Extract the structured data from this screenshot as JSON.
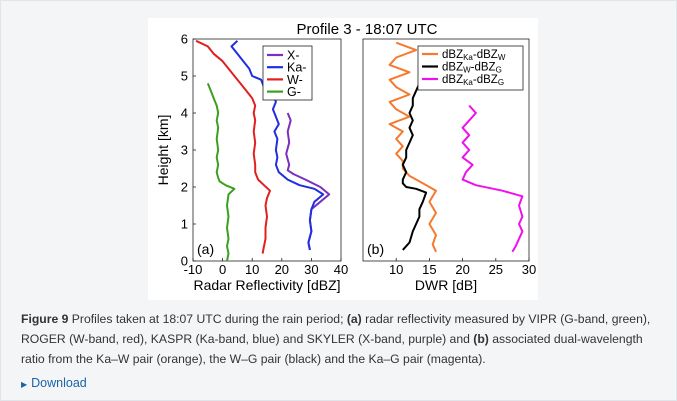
{
  "figure": {
    "title": "Profile 3 - 18:07 UTC",
    "caption": {
      "label": "Figure 9",
      "part1": " Profiles taken at 18:07 UTC during the rain period; ",
      "a_label": "(a)",
      "part2": " radar reflectivity measured by VIPR (G-band, green), ROGER (W-band, red), KASPR (Ka-band, blue) and SKYLER (X-band, purple) and ",
      "b_label": "(b)",
      "part3": " associated dual-wavelength ratio from the Ka–W pair (orange), the W–G pair (black) and the Ka–G pair (magenta)."
    },
    "download_label": "Download"
  },
  "chart_data": [
    {
      "type": "line",
      "panel_label": "(a)",
      "xlabel": "Radar Reflectivity [dBZ]",
      "ylabel": "Height [km]",
      "xlim": [
        -10,
        40
      ],
      "ylim": [
        0,
        6
      ],
      "xticks": [
        "-10",
        "0",
        "10",
        "20",
        "30",
        "40"
      ],
      "yticks": [
        "0",
        "1",
        "2",
        "3",
        "4",
        "5",
        "6"
      ],
      "grid": false,
      "legend_position": "top-right",
      "series": [
        {
          "name": "X-",
          "color": "#7b2fbe",
          "x": [
            22,
            23,
            22,
            22.5,
            21.5,
            22.5,
            22,
            24,
            28,
            33,
            36,
            33,
            30,
            29.5,
            30,
            29,
            29.5
          ],
          "y": [
            4.0,
            3.8,
            3.5,
            3.2,
            2.9,
            2.6,
            2.45,
            2.35,
            2.2,
            2.0,
            1.8,
            1.6,
            1.4,
            1.1,
            0.8,
            0.5,
            0.3
          ]
        },
        {
          "name": "Ka-",
          "color": "#1f2fe0",
          "x": [
            5,
            3,
            5,
            7,
            9,
            10,
            13,
            14,
            17,
            18,
            17,
            18,
            19,
            17.5,
            18.5,
            18,
            18.5,
            18,
            19,
            22,
            26,
            31,
            34,
            31,
            30,
            29.5,
            30,
            29,
            29.5
          ],
          "y": [
            5.95,
            5.8,
            5.6,
            5.4,
            5.2,
            5.0,
            4.9,
            4.7,
            4.5,
            4.3,
            4.1,
            3.9,
            3.7,
            3.5,
            3.3,
            3.0,
            2.8,
            2.6,
            2.4,
            2.2,
            2.05,
            1.95,
            1.8,
            1.6,
            1.4,
            1.1,
            0.8,
            0.5,
            0.3
          ]
        },
        {
          "name": "W-",
          "color": "#e02020",
          "x": [
            -9,
            -5,
            -3,
            0,
            2,
            4,
            6,
            8,
            10,
            11,
            10.5,
            11,
            10.5,
            11,
            10.5,
            11,
            11,
            12,
            14,
            16,
            15,
            14.5,
            15,
            14.5,
            14.5,
            14,
            13.5
          ],
          "y": [
            5.95,
            5.8,
            5.6,
            5.4,
            5.2,
            5.0,
            4.8,
            4.6,
            4.4,
            4.2,
            4.0,
            3.8,
            3.5,
            3.2,
            2.9,
            2.6,
            2.4,
            2.2,
            2.05,
            1.9,
            1.7,
            1.5,
            1.2,
            0.9,
            0.6,
            0.4,
            0.2
          ]
        },
        {
          "name": "G-",
          "color": "#3ca01e",
          "x": [
            -5,
            -4,
            -3,
            -2,
            -1.5,
            -2,
            -1.5,
            -2,
            -1.5,
            -2,
            -1.5,
            -2,
            -1.5,
            -1,
            1,
            4,
            2,
            1.5,
            2,
            1.5,
            2,
            1.5,
            2,
            1.5
          ],
          "y": [
            4.8,
            4.6,
            4.4,
            4.2,
            4.0,
            3.8,
            3.6,
            3.3,
            3.0,
            2.8,
            2.6,
            2.4,
            2.25,
            2.15,
            2.05,
            1.95,
            1.8,
            1.5,
            1.2,
            0.9,
            0.6,
            0.4,
            0.2,
            0.0
          ]
        }
      ]
    },
    {
      "type": "line",
      "panel_label": "(b)",
      "xlabel": "DWR [dB]",
      "ylabel": "",
      "xlim": [
        5,
        30
      ],
      "ylim": [
        0,
        6
      ],
      "xticks": [
        "10",
        "15",
        "20",
        "25",
        "30"
      ],
      "yticks": [],
      "grid": false,
      "legend_position": "top-right",
      "series": [
        {
          "name": "dBZ<sub>Ka</sub>-dBZ<sub>W</sub>",
          "label_main": "dBZ",
          "sub1": "Ka",
          "mid": "-dBZ",
          "sub2": "W",
          "color": "#f57a2e",
          "x": [
            10,
            13,
            10,
            9,
            12,
            9,
            10,
            12,
            9,
            10,
            12,
            9,
            11,
            10,
            11,
            10,
            11,
            11,
            12,
            14,
            16,
            15,
            16,
            15,
            16,
            15.5,
            16
          ],
          "y": [
            5.9,
            5.7,
            5.5,
            5.3,
            5.1,
            4.9,
            4.7,
            4.5,
            4.3,
            4.1,
            3.9,
            3.7,
            3.5,
            3.3,
            3.1,
            2.9,
            2.7,
            2.5,
            2.3,
            2.1,
            1.9,
            1.6,
            1.3,
            1.0,
            0.7,
            0.45,
            0.25
          ]
        },
        {
          "name": "dBZ<sub>W</sub>-dBZ<sub>G</sub>",
          "label_main": "dBZ",
          "sub1": "W",
          "mid": "-dBZ",
          "sub2": "G",
          "color": "#000000",
          "x": [
            14,
            13.5,
            13,
            12.5,
            12.5,
            12,
            12.5,
            12,
            12.5,
            12,
            11.5,
            11.5,
            11,
            11.5,
            11,
            11,
            11.5,
            13,
            14.5,
            14,
            13.5,
            13.5,
            13,
            12.5,
            12,
            11
          ],
          "y": [
            5.0,
            4.8,
            4.6,
            4.4,
            4.2,
            4.0,
            3.8,
            3.6,
            3.4,
            3.2,
            3.0,
            2.8,
            2.6,
            2.4,
            2.2,
            2.1,
            2.0,
            1.95,
            1.85,
            1.6,
            1.4,
            1.2,
            1.0,
            0.8,
            0.5,
            0.3
          ]
        },
        {
          "name": "dBZ<sub>Ka</sub>-dBZ<sub>G</sub>",
          "label_main": "dBZ",
          "sub1": "Ka",
          "mid": "-dBZ",
          "sub2": "G",
          "color": "#ee11ee",
          "x": [
            21,
            22,
            21,
            20,
            21,
            20,
            21,
            20,
            21.5,
            20.5,
            20,
            22,
            26,
            29,
            28.5,
            29,
            28.5,
            29,
            28.5,
            28,
            27.5
          ],
          "y": [
            4.2,
            4.0,
            3.8,
            3.6,
            3.4,
            3.2,
            3.0,
            2.8,
            2.6,
            2.4,
            2.2,
            2.05,
            1.9,
            1.75,
            1.5,
            1.2,
            1.0,
            0.8,
            0.6,
            0.4,
            0.25
          ]
        }
      ]
    }
  ]
}
